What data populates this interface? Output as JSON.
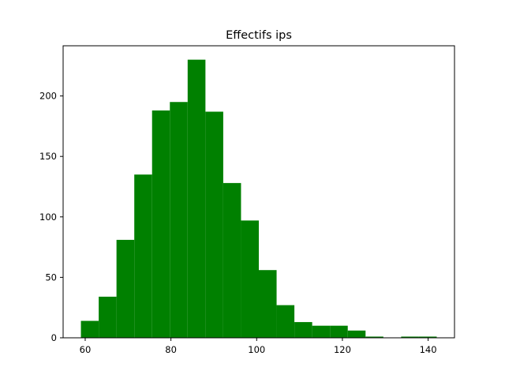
{
  "chart_data": {
    "type": "bar",
    "title": "Effectifs ips",
    "xlabel": "",
    "ylabel": "",
    "bar_color": "#008000",
    "bin_edges": [
      59.0,
      63.15,
      67.3,
      71.45,
      75.6,
      79.75,
      83.9,
      88.05,
      92.2,
      96.35,
      100.5,
      104.65,
      108.8,
      112.95,
      117.1,
      121.25,
      125.4,
      129.55,
      133.7,
      137.85,
      142.0
    ],
    "values": [
      14,
      34,
      81,
      135,
      188,
      195,
      230,
      187,
      128,
      97,
      56,
      27,
      13,
      10,
      10,
      6,
      1,
      0,
      1,
      1
    ],
    "xlim": [
      54.85,
      146.15
    ],
    "ylim": [
      0,
      241.5
    ],
    "xticks": [
      60,
      80,
      100,
      120,
      140
    ],
    "yticks": [
      0,
      50,
      100,
      150,
      200
    ],
    "grid": false
  }
}
